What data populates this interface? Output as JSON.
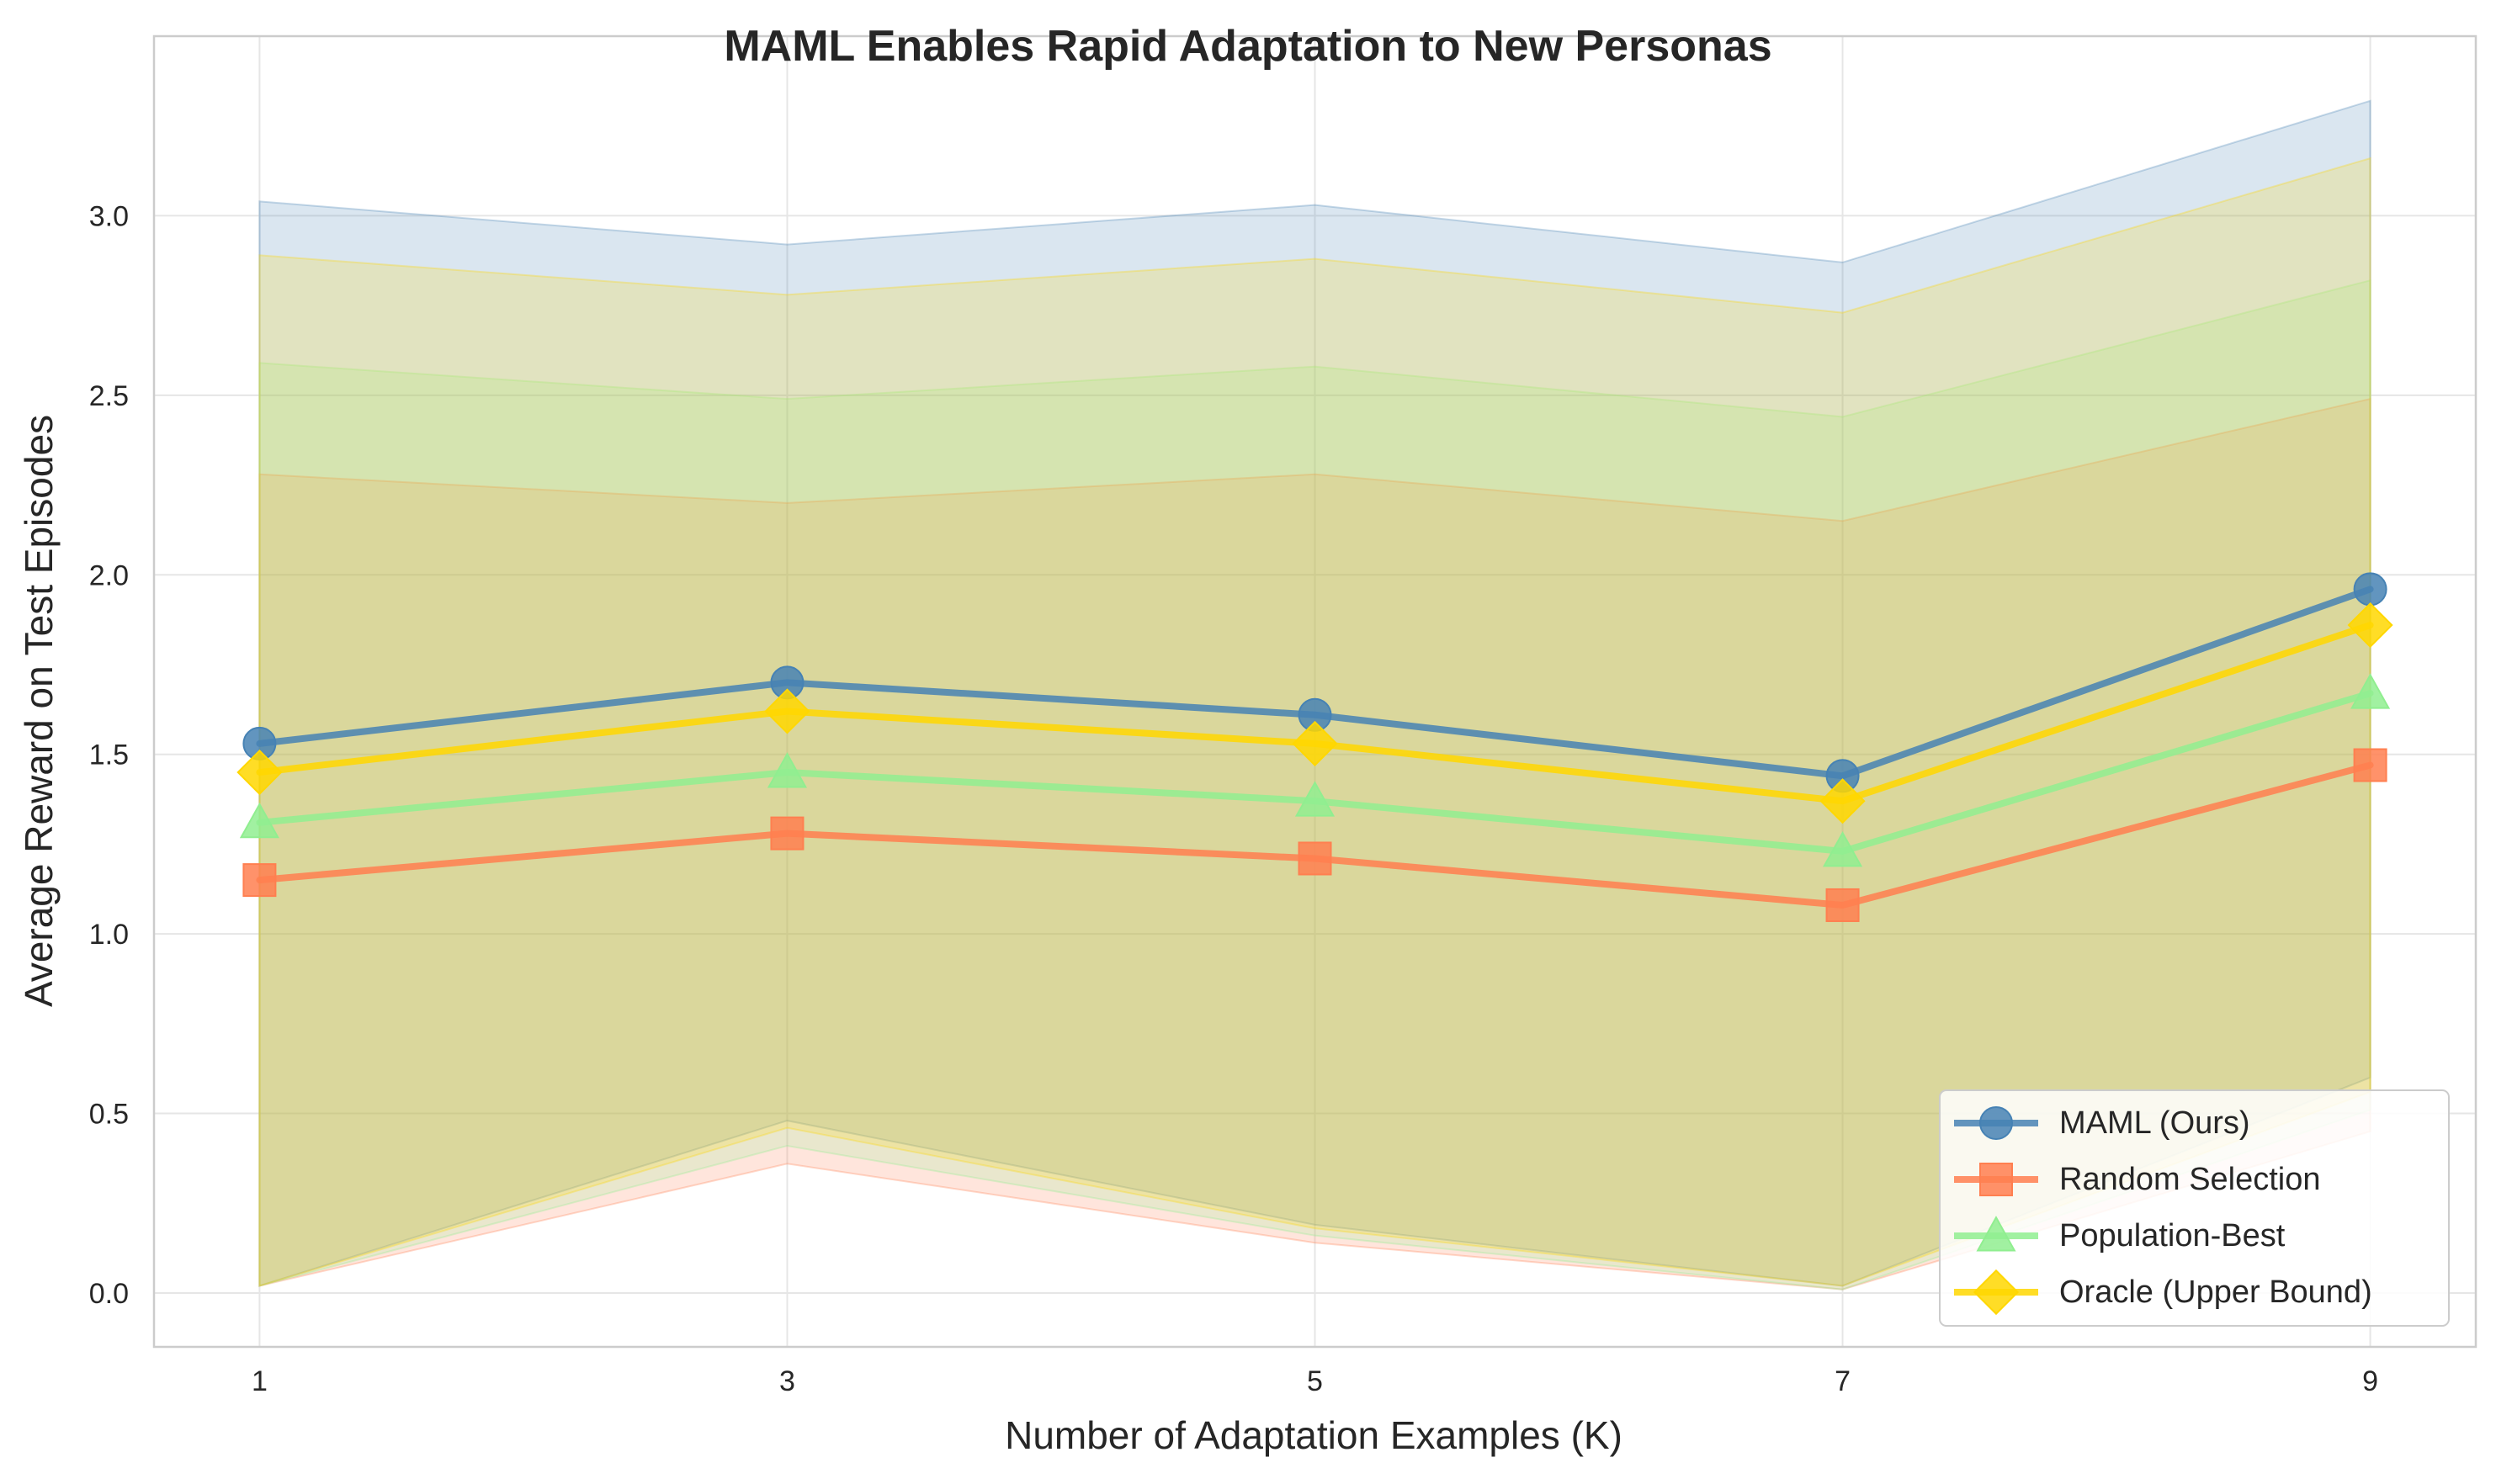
{
  "chart_data": {
    "type": "line",
    "title": "MAML Enables Rapid Adaptation to New Personas",
    "xlabel": "Number of Adaptation Examples (K)",
    "ylabel": "Average Reward on Test Episodes",
    "x": [
      1,
      3,
      5,
      7,
      9
    ],
    "xticks": [
      "1",
      "3",
      "5",
      "7",
      "9"
    ],
    "yticks": [
      "0.0",
      "0.5",
      "1.0",
      "1.5",
      "2.0",
      "2.5",
      "3.0"
    ],
    "xlim": [
      0.6,
      9.4
    ],
    "ylim": [
      -0.15,
      3.5
    ],
    "grid": true,
    "legend_position": "lower-right",
    "series": [
      {
        "name": "MAML (Ours)",
        "color": "#4682B4",
        "marker": "circle",
        "values": [
          1.53,
          1.7,
          1.61,
          1.44,
          1.96
        ],
        "band_upper": [
          3.04,
          2.92,
          3.03,
          2.87,
          3.32
        ],
        "band_lower": [
          0.02,
          0.48,
          0.19,
          0.02,
          0.6
        ]
      },
      {
        "name": "Random Selection",
        "color": "#FF7F50",
        "marker": "square",
        "values": [
          1.15,
          1.28,
          1.21,
          1.08,
          1.47
        ],
        "band_upper": [
          2.28,
          2.2,
          2.28,
          2.15,
          2.49
        ],
        "band_lower": [
          0.02,
          0.36,
          0.14,
          0.01,
          0.45
        ]
      },
      {
        "name": "Population-Best",
        "color": "#90EE90",
        "marker": "triangle",
        "values": [
          1.31,
          1.45,
          1.37,
          1.23,
          1.67
        ],
        "band_upper": [
          2.59,
          2.49,
          2.58,
          2.44,
          2.82
        ],
        "band_lower": [
          0.02,
          0.41,
          0.16,
          0.01,
          0.51
        ]
      },
      {
        "name": "Oracle (Upper Bound)",
        "color": "#FFD700",
        "marker": "diamond",
        "values": [
          1.45,
          1.62,
          1.53,
          1.37,
          1.86
        ],
        "band_upper": [
          2.89,
          2.78,
          2.88,
          2.73,
          3.16
        ],
        "band_lower": [
          0.02,
          0.46,
          0.18,
          0.02,
          0.56
        ]
      }
    ]
  }
}
